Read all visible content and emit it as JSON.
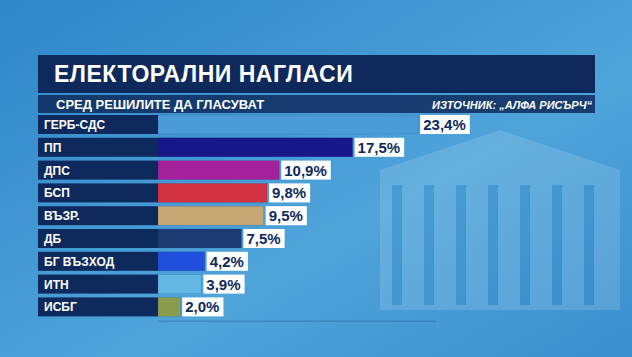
{
  "chart_data": {
    "type": "bar",
    "orientation": "horizontal",
    "title": "ЕЛЕКТОРАЛНИ НАГЛАСИ",
    "subtitle": "СРЕД РЕШИЛИТЕ ДА ГЛАСУВАТ",
    "annotations": [
      "ИЗТОЧНИК: „АЛФА РИСЪРЧ“"
    ],
    "categories": [
      "ГЕРБ-СДС",
      "ПП",
      "ДПС",
      "БСП",
      "ВЪЗР.",
      "ДБ",
      "БГ ВЪЗХОД",
      "ИТН",
      "ИСБГ"
    ],
    "values": [
      23.4,
      17.5,
      10.9,
      9.8,
      9.5,
      7.5,
      4.2,
      3.9,
      2.0
    ],
    "value_labels": [
      "23,4%",
      "17,5%",
      "10,9%",
      "9,8%",
      "9,5%",
      "7,5%",
      "4,2%",
      "3,9%",
      "2,0%"
    ],
    "colors": [
      "#4a9bd6",
      "#17178a",
      "#a3229b",
      "#d2313f",
      "#c6a673",
      "#1d3a73",
      "#1f4fdc",
      "#62b8e3",
      "#8c9c4e"
    ],
    "xlim": [
      0,
      25
    ],
    "data_labels": true,
    "tick_labels": false
  }
}
